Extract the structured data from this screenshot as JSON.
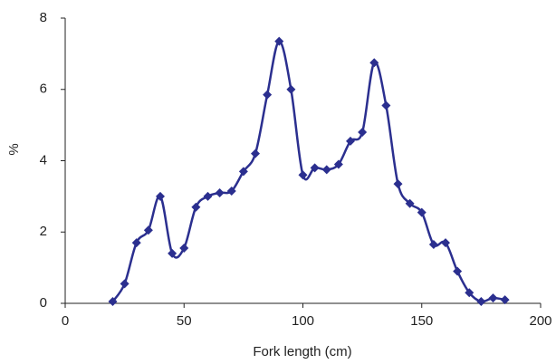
{
  "chart_data": {
    "type": "line",
    "x_label": "Fork length (cm)",
    "y_label": "%",
    "x": [
      20,
      25,
      30,
      35,
      40,
      45,
      50,
      55,
      60,
      65,
      70,
      75,
      80,
      85,
      90,
      95,
      100,
      105,
      110,
      115,
      120,
      125,
      130,
      135,
      140,
      145,
      150,
      155,
      160,
      165,
      170,
      175,
      180,
      185
    ],
    "series": [
      {
        "color": "#2b2f8f",
        "values": [
          0.05,
          0.55,
          1.7,
          2.05,
          3.0,
          1.4,
          1.55,
          2.7,
          3.0,
          3.1,
          3.15,
          3.7,
          4.2,
          5.85,
          7.35,
          6.0,
          3.6,
          3.8,
          3.75,
          3.9,
          4.55,
          4.8,
          6.75,
          5.55,
          3.35,
          2.8,
          2.55,
          1.65,
          1.7,
          0.9,
          0.3,
          0.05,
          0.15,
          0.1
        ]
      }
    ],
    "xlim": [
      0,
      200
    ],
    "xticks": [
      0,
      50,
      100,
      150,
      200
    ],
    "ylim": [
      0,
      8
    ],
    "yticks": [
      0,
      2,
      4,
      6,
      8
    ]
  }
}
